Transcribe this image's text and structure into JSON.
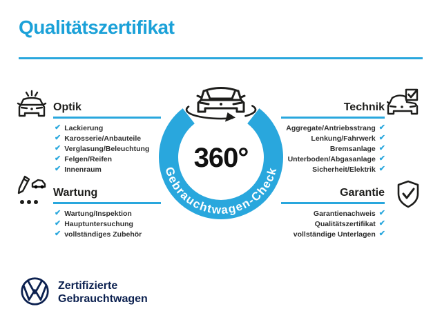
{
  "title": "Qualitätszertifikat",
  "colors": {
    "accent_blue": "#29a7dd",
    "title_blue": "#1ba1d8",
    "navy": "#0c2150",
    "ink": "#1d1d1b",
    "background": "#ffffff"
  },
  "check_glyph": "✔",
  "center": {
    "badge_value": "360°",
    "badge_ring_label": "Gebrauchtwagen-Check",
    "car_icon": "rotating-car-icon"
  },
  "sections": {
    "optik": {
      "label": "Optik",
      "icon": "car-headlights-icon",
      "items": [
        "Lackierung",
        "Karosserie/Anbauteile",
        "Verglasung/Beleuchtung",
        "Felgen/Reifen",
        "Innenraum"
      ]
    },
    "technik": {
      "label": "Technik",
      "icon": "car-checkbox-icon",
      "items": [
        "Aggregate/Antriebsstrang",
        "Lenkung/Fahrwerk",
        "Bremsanlage",
        "Unterboden/Abgasanlage",
        "Sicherheit/Elektrik"
      ]
    },
    "wartung": {
      "label": "Wartung",
      "icon": "service-checklist-icon",
      "items": [
        "Wartung/Inspektion",
        "Hauptuntersuchung",
        "vollständiges Zubehör"
      ]
    },
    "garantie": {
      "label": "Garantie",
      "icon": "shield-check-icon",
      "items": [
        "Garantienachweis",
        "Qualitätszertifikat",
        "vollständige Unterlagen"
      ]
    }
  },
  "footer": {
    "logo_icon": "vw-logo",
    "line1": "Zertifizierte",
    "line2": "Gebrauchtwagen"
  }
}
